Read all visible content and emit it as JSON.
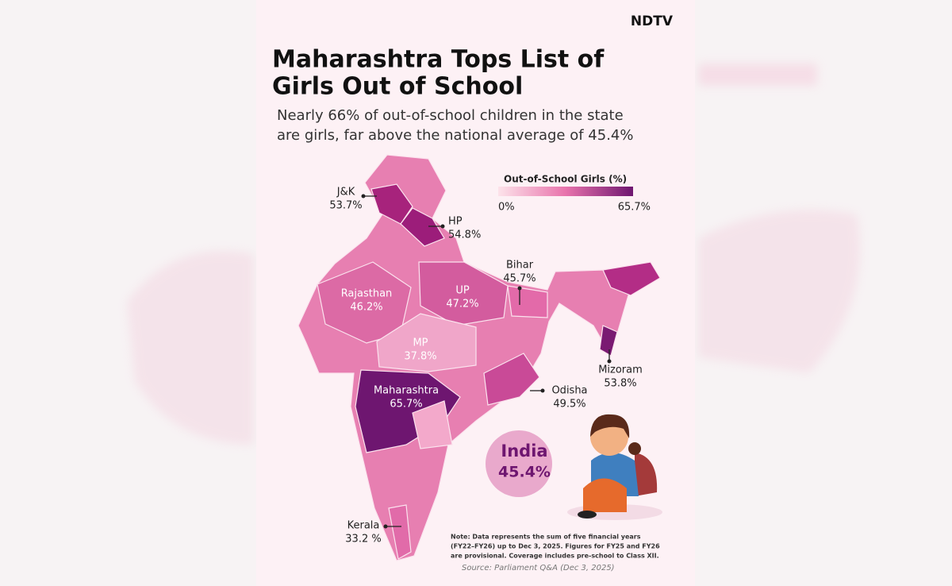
{
  "header": {
    "brand": "NDTV",
    "title_lines": [
      "Maharashtra Tops List of",
      "Girls Out of School"
    ],
    "subtitle_lines": [
      "Nearly 66% of out-of-school children in the state",
      "are girls, far above the national average of 45.4%"
    ]
  },
  "legend": {
    "title": "Out-of-School Girls (%)",
    "min_label": "0%",
    "max_label": "65.7%"
  },
  "regions": [
    {
      "name": "J&K",
      "value": "53.7%"
    },
    {
      "name": "HP",
      "value": "54.8%"
    },
    {
      "name": "Rajasthan",
      "value": "46.2%"
    },
    {
      "name": "UP",
      "value": "47.2%"
    },
    {
      "name": "Bihar",
      "value": "45.7%"
    },
    {
      "name": "MP",
      "value": "37.8%"
    },
    {
      "name": "Maharashtra",
      "value": "65.7%"
    },
    {
      "name": "Odisha",
      "value": "49.5%"
    },
    {
      "name": "Mizoram",
      "value": "53.8%"
    },
    {
      "name": "Kerala",
      "value": "33.2 %"
    }
  ],
  "national": {
    "name": "India",
    "value": "45.4%"
  },
  "note_lines": [
    "Note: Data represents the sum of five financial years",
    "(FY22–FY26) up to Dec 3, 2025. Figures for FY25 and FY26",
    "are provisional. Coverage includes pre-school to Class XII."
  ],
  "source": "Source: Parliament Q&A (Dec 3, 2025)"
}
